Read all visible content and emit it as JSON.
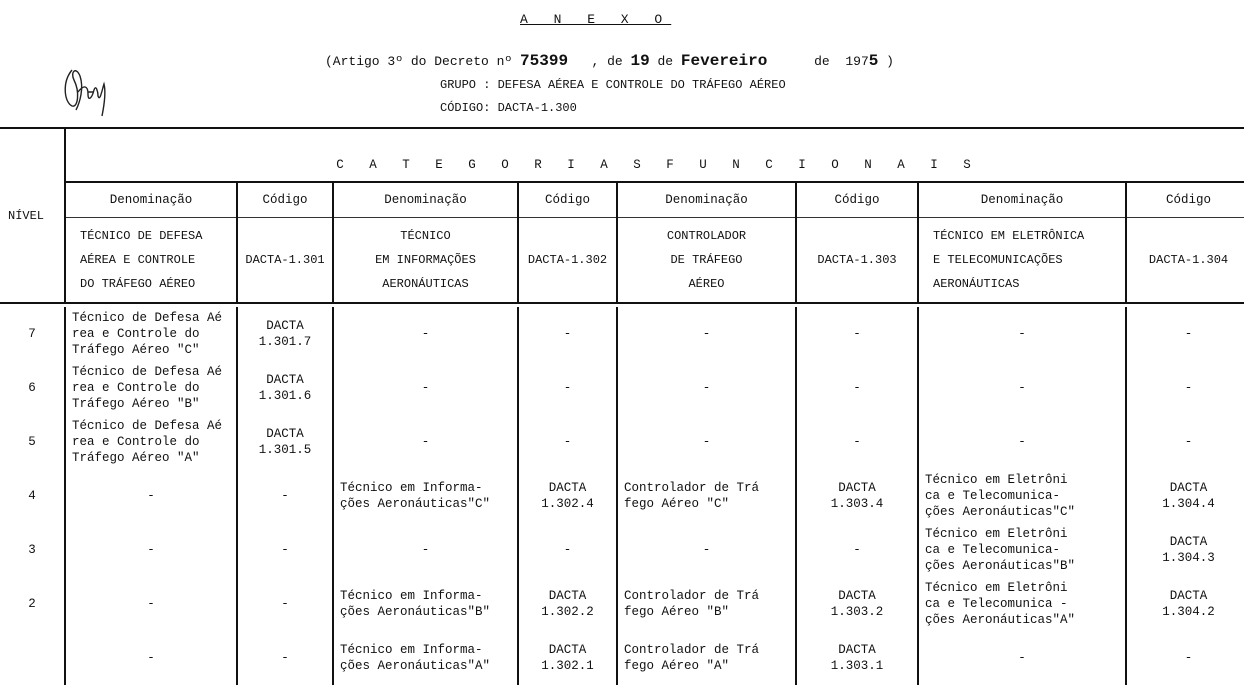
{
  "header": {
    "title": "A N E X O",
    "decree_prefix": "(Artigo 3º do Decreto nº ",
    "decree_number": "75399",
    "date_sep1": "   , de ",
    "day": "19",
    "date_sep2": " de ",
    "month": "Fevereiro",
    "date_sep3": "      de  197",
    "year_last": "5",
    "date_close": " )",
    "grupo": "GRUPO : DEFESA AÉREA E CONTROLE DO TRÁFEGO AÉREO",
    "codigo": "CÓDIGO: DACTA-1.300"
  },
  "table": {
    "nivel_label": "NÍVEL",
    "categories_label": "C A T E G O R I A S     F U N C I O N A I S",
    "subheaders": [
      "Denominação",
      "Código",
      "Denominação",
      "Código",
      "Denominação",
      "Código",
      "Denominação",
      "Código"
    ],
    "category_names": [
      "TÉCNICO DE DEFESA\nAÉREA  E CONTROLE\nDO  TRÁFEGO AÉREO",
      "DACTA-1.301",
      "TÉCNICO\nEM  INFORMAÇÕES\nAERONÁUTICAS",
      "DACTA-1.302",
      "CONTROLADOR\nDE  TRÁFEGO\nAÉREO",
      "DACTA-1.303",
      "TÉCNICO EM ELETRÔNICA\nE    TELECOMUNICAÇÕES\nAERONÁUTICAS",
      "DACTA-1.304"
    ],
    "rows": [
      {
        "level": "7",
        "cells": [
          "Técnico de Defesa Aé\nrea e  Controle   do\nTráfego Aéreo  \"C\"",
          "DACTA\n1.301.7",
          "-",
          "-",
          "-",
          "-",
          "-",
          "-"
        ]
      },
      {
        "level": "6",
        "cells": [
          "Técnico de Defesa Aé\nrea e  Controle   do\nTráfego Aéreo  \"B\"",
          "DACTA\n1.301.6",
          "-",
          "-",
          "-",
          "-",
          "-",
          "-"
        ]
      },
      {
        "level": "5",
        "cells": [
          "Técnico de Defesa Aé\nrea e  Controle   do\nTráfego Aéreo  \"A\"",
          "DACTA\n1.301.5",
          "-",
          "-",
          "-",
          "-",
          "-",
          "-"
        ]
      },
      {
        "level": "4",
        "cells": [
          "-",
          "-",
          "Técnico em Informa-\nções Aeronáuticas\"C\"",
          "DACTA\n1.302.4",
          "Controlador de Trá\nfego Aéreo  \"C\"",
          "DACTA\n1.303.4",
          "Técnico em Eletrôni\nca e  Telecomunica-\nções Aeronáuticas\"C\"",
          "DACTA\n1.304.4"
        ]
      },
      {
        "level": "3",
        "cells": [
          "-",
          "-",
          "-",
          "-",
          "-",
          "-",
          "Técnico em Eletrôni\nca e  Telecomunica-\nções Aeronáuticas\"B\"",
          "DACTA\n1.304.3"
        ]
      },
      {
        "level": "2",
        "cells": [
          "-",
          "-",
          "Técnico em Informa-\nções Aeronáuticas\"B\"",
          "DACTA\n1.302.2",
          "Controlador de Trá\nfego Aéreo  \"B\"",
          "DACTA\n1.303.2",
          "Técnico em Eletrôni\nca e Telecomunica -\nções Aeronáuticas\"A\"",
          "DACTA\n1.304.2"
        ]
      },
      {
        "level": "",
        "cells": [
          "-",
          "-",
          "Técnico em Informa-\nções Aeronáuticas\"A\"",
          "DACTA\n1.302.1",
          "Controlador de Trá\nfego Aéreo  \"A\"",
          "DACTA\n1.303.1",
          "-",
          "-"
        ]
      }
    ]
  }
}
